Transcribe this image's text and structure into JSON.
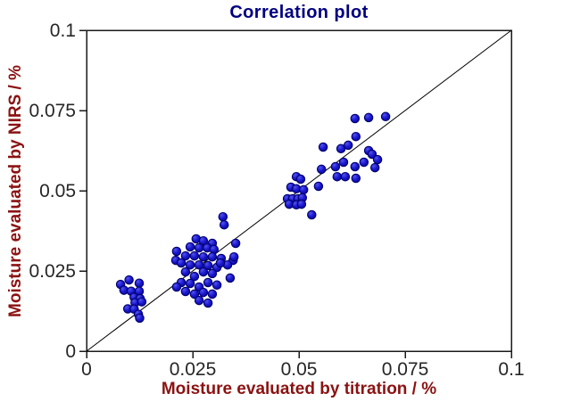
{
  "figure": {
    "title": "Correlation plot",
    "x_axis_label": "Moisture evaluated by titration / %",
    "y_axis_label": "Moisture evaluated by NIRS / %"
  },
  "colors": {
    "title": "#000080",
    "axis_label": "#8B1212",
    "tick_label": "#262626",
    "frame": "#1A1A1A",
    "identity_line": "#000000",
    "marker_fill": "#1A17CE",
    "marker_fill_light": "#5252EE",
    "marker_fill_dark": "#0B0BA0",
    "marker_stroke": "#00006E",
    "background": "#FFFFFF"
  },
  "chart_data": {
    "type": "scatter",
    "title": "Correlation plot",
    "xlabel": "Moisture evaluated by titration / %",
    "ylabel": "Moisture evaluated by NIRS / %",
    "xlim": [
      0,
      0.1
    ],
    "ylim": [
      0,
      0.1
    ],
    "xticks": [
      0,
      0.025,
      0.05,
      0.075,
      0.1
    ],
    "yticks": [
      0,
      0.025,
      0.05,
      0.075,
      0.1
    ],
    "xtick_labels": [
      "0",
      "0.025",
      "0.05",
      "0.075",
      "0.1"
    ],
    "ytick_labels": [
      "0",
      "0.025",
      "0.05",
      "0.075",
      "0.1"
    ],
    "grid": false,
    "legend": null,
    "identity_line": {
      "from": [
        0,
        0
      ],
      "to": [
        0.1,
        0.1
      ]
    },
    "series": [
      {
        "name": "samples",
        "marker": "circle",
        "points": [
          [
            0.008,
            0.0208
          ],
          [
            0.01,
            0.0222
          ],
          [
            0.0124,
            0.0212
          ],
          [
            0.0088,
            0.019
          ],
          [
            0.0105,
            0.0187
          ],
          [
            0.0124,
            0.0187
          ],
          [
            0.0112,
            0.0168
          ],
          [
            0.0126,
            0.0164
          ],
          [
            0.0114,
            0.0151
          ],
          [
            0.013,
            0.0154
          ],
          [
            0.0097,
            0.0132
          ],
          [
            0.0112,
            0.0131
          ],
          [
            0.0122,
            0.0115
          ],
          [
            0.0125,
            0.0103
          ],
          [
            0.0321,
            0.0419
          ],
          [
            0.0324,
            0.0394
          ],
          [
            0.0258,
            0.035
          ],
          [
            0.0275,
            0.0344
          ],
          [
            0.0296,
            0.0336
          ],
          [
            0.0351,
            0.0336
          ],
          [
            0.0244,
            0.0325
          ],
          [
            0.0265,
            0.0322
          ],
          [
            0.0284,
            0.0322
          ],
          [
            0.0212,
            0.0311
          ],
          [
            0.03,
            0.0317
          ],
          [
            0.0233,
            0.0297
          ],
          [
            0.0254,
            0.0297
          ],
          [
            0.0275,
            0.0294
          ],
          [
            0.0296,
            0.0294
          ],
          [
            0.0317,
            0.0289
          ],
          [
            0.021,
            0.0283
          ],
          [
            0.0345,
            0.0283
          ],
          [
            0.0347,
            0.0294
          ],
          [
            0.0223,
            0.0275
          ],
          [
            0.0244,
            0.0269
          ],
          [
            0.0265,
            0.0269
          ],
          [
            0.0286,
            0.0267
          ],
          [
            0.0307,
            0.0261
          ],
          [
            0.0332,
            0.0269
          ],
          [
            0.0315,
            0.0275
          ],
          [
            0.0233,
            0.0247
          ],
          [
            0.0275,
            0.0247
          ],
          [
            0.0296,
            0.0242
          ],
          [
            0.0254,
            0.0233
          ],
          [
            0.0338,
            0.0228
          ],
          [
            0.0223,
            0.0214
          ],
          [
            0.0244,
            0.0211
          ],
          [
            0.0286,
            0.0214
          ],
          [
            0.0265,
            0.02
          ],
          [
            0.0307,
            0.0206
          ],
          [
            0.0212,
            0.02
          ],
          [
            0.0233,
            0.0186
          ],
          [
            0.0275,
            0.0183
          ],
          [
            0.0254,
            0.0178
          ],
          [
            0.0296,
            0.0178
          ],
          [
            0.0265,
            0.0158
          ],
          [
            0.0286,
            0.015
          ],
          [
            0.0494,
            0.0544
          ],
          [
            0.0504,
            0.0536
          ],
          [
            0.0481,
            0.0511
          ],
          [
            0.0494,
            0.0506
          ],
          [
            0.0511,
            0.0503
          ],
          [
            0.0473,
            0.0475
          ],
          [
            0.0485,
            0.0475
          ],
          [
            0.0498,
            0.0475
          ],
          [
            0.0508,
            0.0478
          ],
          [
            0.0477,
            0.0458
          ],
          [
            0.0494,
            0.0456
          ],
          [
            0.0506,
            0.0458
          ],
          [
            0.053,
            0.0425
          ],
          [
            0.0632,
            0.0725
          ],
          [
            0.0664,
            0.0728
          ],
          [
            0.0704,
            0.0731
          ],
          [
            0.0634,
            0.0669
          ],
          [
            0.0557,
            0.0636
          ],
          [
            0.0599,
            0.0631
          ],
          [
            0.0616,
            0.0642
          ],
          [
            0.0664,
            0.0625
          ],
          [
            0.0672,
            0.0614
          ],
          [
            0.0685,
            0.0597
          ],
          [
            0.0653,
            0.0589
          ],
          [
            0.0605,
            0.0589
          ],
          [
            0.0586,
            0.0575
          ],
          [
            0.0632,
            0.0575
          ],
          [
            0.0679,
            0.0572
          ],
          [
            0.0553,
            0.0567
          ],
          [
            0.059,
            0.0544
          ],
          [
            0.0609,
            0.0544
          ],
          [
            0.0634,
            0.0539
          ],
          [
            0.0546,
            0.0514
          ]
        ]
      }
    ]
  }
}
